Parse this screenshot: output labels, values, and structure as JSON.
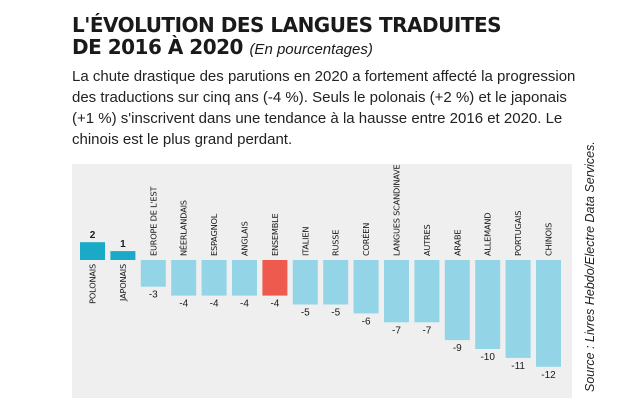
{
  "title_line1": "L'ÉVOLUTION DES LANGUES TRADUITES",
  "title_line2": "DE 2016 À 2020",
  "subtitle": "(En pourcentages)",
  "description": "La chute drastique des parutions en 2020 a fortement affecté la progression des traductions sur cinq ans (-4 %). Seuls le polonais (+2 %) et le japonais (+1 %) s'inscrivent dans une tendance à la hausse entre 2016 et 2020. Le chinois est le plus grand perdant.",
  "source": "Source : Livres Hebdo/Electre Data Services.",
  "colors": {
    "positive": "#1aa9c7",
    "negative": "#93d5e6",
    "highlight": "#ee5a4d",
    "panel": "#efefef"
  },
  "chart_data": {
    "type": "bar",
    "title": "L'ÉVOLUTION DES LANGUES TRADUITES DE 2016 À 2020",
    "categories": [
      "POLONAIS",
      "JAPONAIS",
      "EUROPE DE L'EST",
      "NÉERLANDAIS",
      "ESPAGNOL",
      "ANGLAIS",
      "ENSEMBLE",
      "ITALIEN",
      "RUSSE",
      "CORÉEN",
      "LANGUES SCANDINAVES",
      "AUTRES",
      "ARABE",
      "ALLEMAND",
      "PORTUGAIS",
      "CHINOIS"
    ],
    "values": [
      2,
      1,
      -3,
      -4,
      -4,
      -4,
      -4,
      -5,
      -5,
      -6,
      -7,
      -7,
      -9,
      -10,
      -11,
      -12
    ],
    "value_labels": [
      "2",
      "1",
      "-3",
      "-4",
      "-4",
      "-4",
      "-4",
      "-5",
      "-5",
      "-6",
      "-7",
      "-7",
      "-9",
      "-10",
      "-11",
      "-12"
    ],
    "highlight": "ENSEMBLE",
    "ylim": [
      -12,
      2
    ],
    "grid": false,
    "legend": "none"
  }
}
